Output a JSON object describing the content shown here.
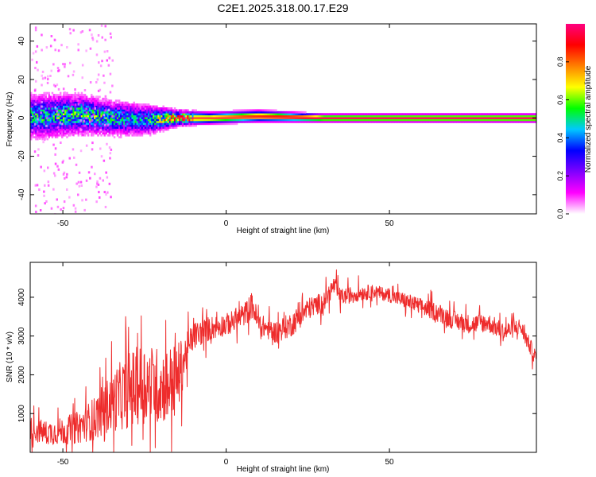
{
  "title": "C2E1.2025.318.00.17.E29",
  "chart_data": [
    {
      "type": "heatmap",
      "xlabel": "Height of straight line (km)",
      "ylabel": "Frequency (Hz)",
      "xlim": [
        -60,
        95
      ],
      "ylim": [
        -50,
        49
      ],
      "xticks": [
        -50,
        0,
        50
      ],
      "yticks": [
        -40,
        -20,
        0,
        20,
        40
      ],
      "colorbar": {
        "label": "Normalized spectral amplitude",
        "range": [
          0.0,
          1.0
        ],
        "ticks": [
          "0.0",
          "0.2",
          "0.4",
          "0.6",
          "0.8"
        ],
        "colormap": [
          "#ffffff",
          "#ff00ff",
          "#7f00ff",
          "#0000ff",
          "#00c8ff",
          "#00ff00",
          "#ffff00",
          "#ff8000",
          "#ff0000",
          "#ff0080"
        ]
      },
      "ridge": [
        {
          "x": -55,
          "f": 1,
          "amp": 0.45,
          "spread": 5.5
        },
        {
          "x": -45,
          "f": 2,
          "amp": 0.5,
          "spread": 5
        },
        {
          "x": -35,
          "f": 0,
          "amp": 0.45,
          "spread": 4.5
        },
        {
          "x": -25,
          "f": -1,
          "amp": 0.4,
          "spread": 4
        },
        {
          "x": -15,
          "f": 0,
          "amp": 0.75,
          "spread": 2
        },
        {
          "x": -5,
          "f": 0,
          "amp": 0.8,
          "spread": 1.5
        },
        {
          "x": 10,
          "f": 1,
          "amp": 0.85,
          "spread": 1.5
        },
        {
          "x": 30,
          "f": 0,
          "amp": 0.95,
          "spread": 1
        },
        {
          "x": 60,
          "f": 0,
          "amp": 0.97,
          "spread": 1
        },
        {
          "x": 95,
          "f": 0,
          "amp": 0.97,
          "spread": 1
        }
      ]
    },
    {
      "type": "line",
      "xlabel": "Height of straight line (km)",
      "ylabel": "SNR (10 * v/v)",
      "xlim": [
        -60,
        95
      ],
      "ylim": [
        0,
        4900
      ],
      "xticks": [
        -50,
        0,
        50
      ],
      "yticks": [
        1000,
        2000,
        3000,
        4000
      ],
      "series": [
        {
          "color": "#ee2c2c",
          "x": [
            -60,
            -55,
            -50,
            -45,
            -40,
            -35,
            -30,
            -25,
            -20,
            -15,
            -12,
            -10,
            -5,
            0,
            5,
            8,
            10,
            15,
            20,
            25,
            30,
            33,
            35,
            40,
            45,
            50,
            55,
            60,
            65,
            70,
            75,
            80,
            85,
            90,
            95
          ],
          "y": [
            600,
            500,
            550,
            650,
            900,
            1300,
            1600,
            1800,
            1700,
            1900,
            2600,
            3000,
            3200,
            3300,
            3500,
            3800,
            3300,
            3100,
            3300,
            3700,
            3900,
            4300,
            4000,
            4100,
            4150,
            4050,
            3900,
            3750,
            3600,
            3400,
            3300,
            3350,
            3100,
            3250,
            2400
          ],
          "noise": [
            450,
            450,
            500,
            600,
            800,
            1100,
            1400,
            1500,
            1400,
            1300,
            700,
            500,
            450,
            400,
            400,
            500,
            400,
            400,
            450,
            400,
            350,
            350,
            300,
            300,
            250,
            250,
            300,
            300,
            350,
            350,
            350,
            350,
            350,
            300,
            300
          ]
        }
      ]
    }
  ]
}
